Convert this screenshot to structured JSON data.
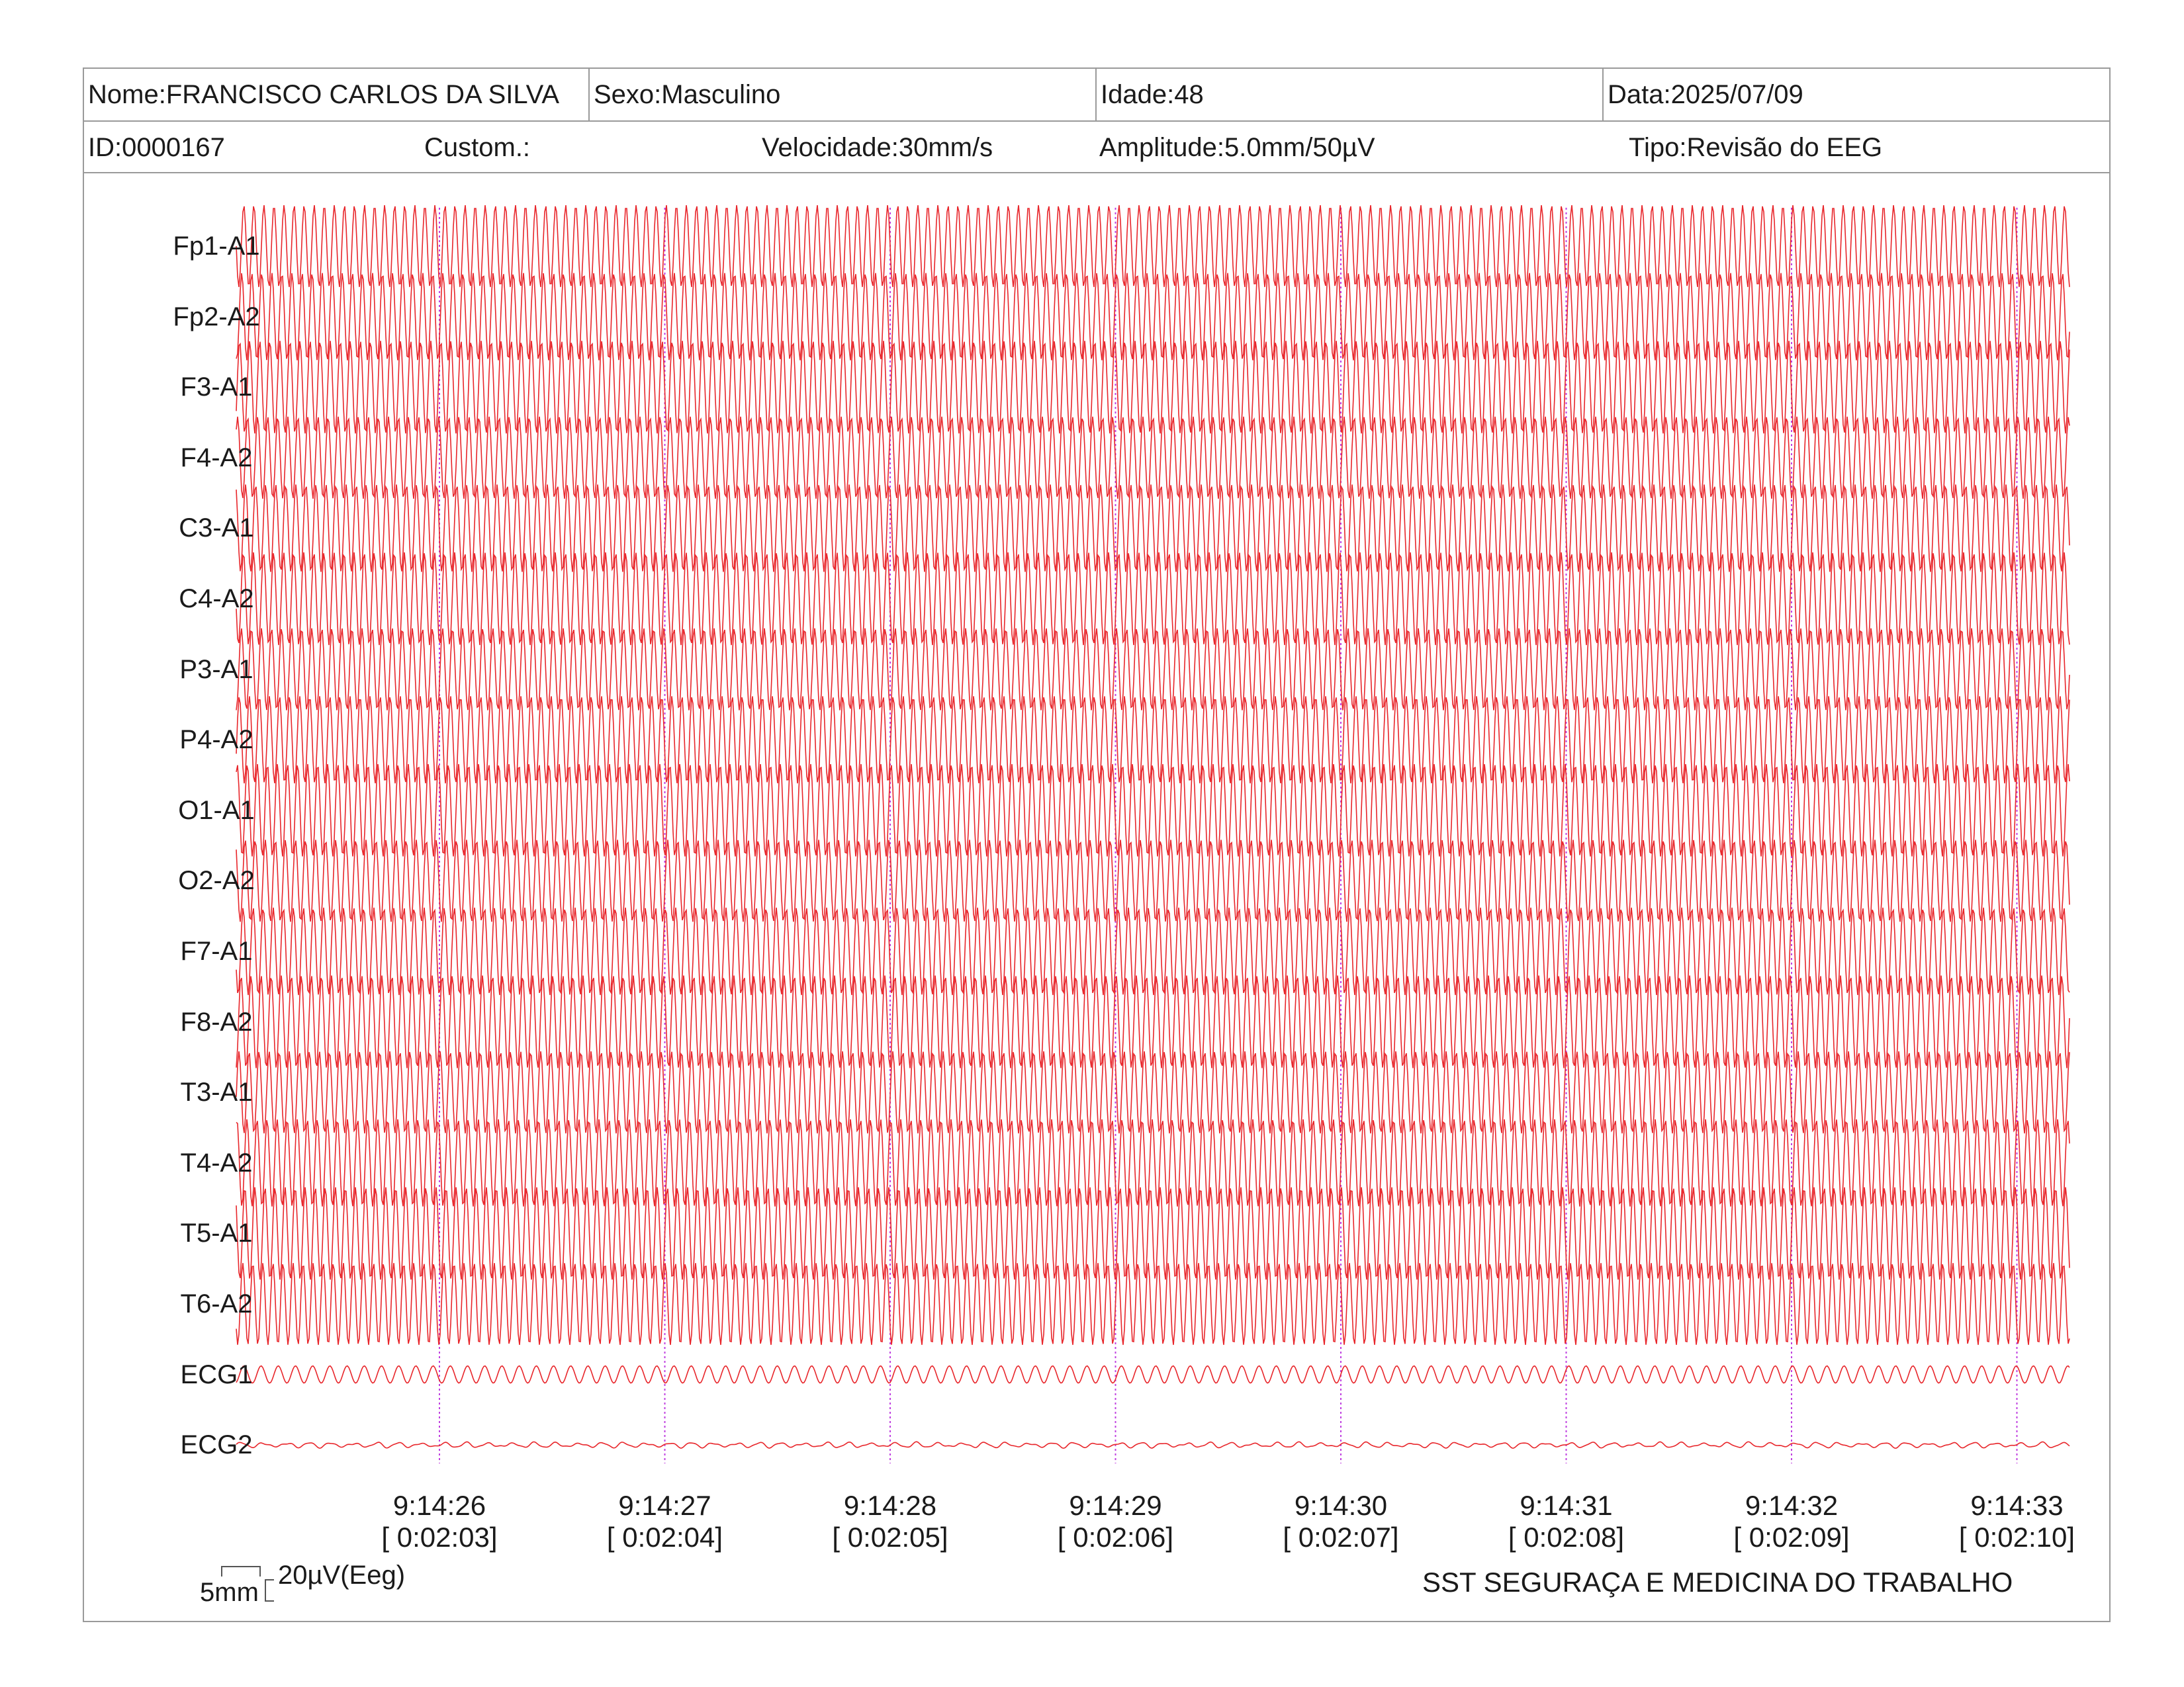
{
  "header": {
    "nome": "Nome:FRANCISCO CARLOS DA SILVA",
    "sexo": "Sexo:Masculino",
    "idade": "Idade:48",
    "data": "Data:2025/07/09",
    "id": "ID:0000167",
    "custom": "Custom.:",
    "velocidade": "Velocidade:30mm/s",
    "amplitude": "Amplitude:5.0mm/50µV",
    "tipo": "Tipo:Revisão do EEG"
  },
  "channels": [
    {
      "label": "Fp1-A1"
    },
    {
      "label": "Fp2-A2"
    },
    {
      "label": "F3-A1"
    },
    {
      "label": "F4-A2"
    },
    {
      "label": "C3-A1"
    },
    {
      "label": "C4-A2"
    },
    {
      "label": "P3-A1"
    },
    {
      "label": "P4-A2"
    },
    {
      "label": "O1-A1"
    },
    {
      "label": "O2-A2"
    },
    {
      "label": "F7-A1"
    },
    {
      "label": "F8-A2"
    },
    {
      "label": "T3-A1"
    },
    {
      "label": "T4-A2"
    },
    {
      "label": "T5-A1"
    },
    {
      "label": "T6-A2"
    },
    {
      "label": "ECG1"
    },
    {
      "label": "ECG2"
    }
  ],
  "time_markers": [
    {
      "clock": "9:14:26",
      "elapsed": "[ 0:02:03]"
    },
    {
      "clock": "9:14:27",
      "elapsed": "[ 0:02:04]"
    },
    {
      "clock": "9:14:28",
      "elapsed": "[ 0:02:05]"
    },
    {
      "clock": "9:14:29",
      "elapsed": "[ 0:02:06]"
    },
    {
      "clock": "9:14:30",
      "elapsed": "[ 0:02:07]"
    },
    {
      "clock": "9:14:31",
      "elapsed": "[ 0:02:08]"
    },
    {
      "clock": "9:14:32",
      "elapsed": "[ 0:02:09]"
    },
    {
      "clock": "9:14:33",
      "elapsed": "[ 0:02:10]"
    }
  ],
  "scale": {
    "time_label": "5mm",
    "amplitude_label": "20µV(Eeg)"
  },
  "footer": {
    "organization": "SST SEGURAÇA E MEDICINA DO TRABALHO"
  },
  "colors": {
    "trace": "#e8262b",
    "second_marker": "#c040e0",
    "border": "#9a9a9a"
  }
}
